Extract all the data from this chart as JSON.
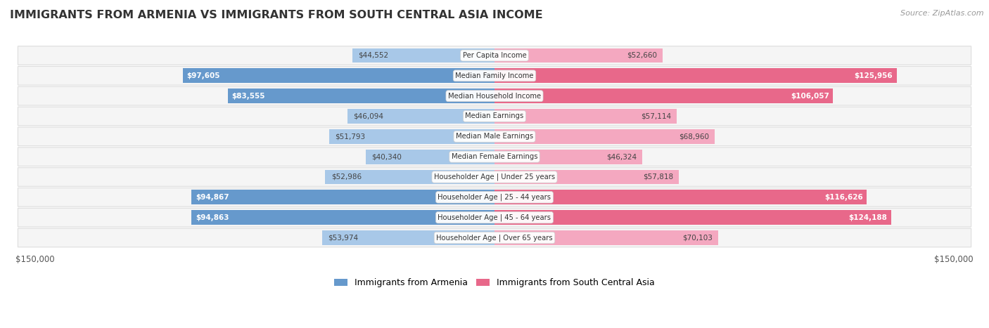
{
  "title": "IMMIGRANTS FROM ARMENIA VS IMMIGRANTS FROM SOUTH CENTRAL ASIA INCOME",
  "source": "Source: ZipAtlas.com",
  "categories": [
    "Per Capita Income",
    "Median Family Income",
    "Median Household Income",
    "Median Earnings",
    "Median Male Earnings",
    "Median Female Earnings",
    "Householder Age | Under 25 years",
    "Householder Age | 25 - 44 years",
    "Householder Age | 45 - 64 years",
    "Householder Age | Over 65 years"
  ],
  "armenia_values": [
    44552,
    97605,
    83555,
    46094,
    51793,
    40340,
    52986,
    94867,
    94863,
    53974
  ],
  "south_central_asia_values": [
    52660,
    125956,
    106057,
    57114,
    68960,
    46324,
    57818,
    116626,
    124188,
    70103
  ],
  "armenia_labels": [
    "$44,552",
    "$97,605",
    "$83,555",
    "$46,094",
    "$51,793",
    "$40,340",
    "$52,986",
    "$94,867",
    "$94,863",
    "$53,974"
  ],
  "south_central_asia_labels": [
    "$52,660",
    "$125,956",
    "$106,057",
    "$57,114",
    "$68,960",
    "$46,324",
    "$57,818",
    "$116,626",
    "$124,188",
    "$70,103"
  ],
  "armenia_color_light": "#a8c8e8",
  "armenia_color_dark": "#6699cc",
  "south_central_asia_color_light": "#f4a8c0",
  "south_central_asia_color_dark": "#e8688a",
  "max_value": 150000,
  "legend_armenia": "Immigrants from Armenia",
  "legend_sca": "Immigrants from South Central Asia",
  "background_color": "#ffffff",
  "row_bg_color": "#f5f5f5",
  "row_border_color": "#dddddd",
  "xlabel_left": "$150,000",
  "xlabel_right": "$150,000",
  "armenia_threshold": 0.38,
  "sca_threshold": 0.55
}
